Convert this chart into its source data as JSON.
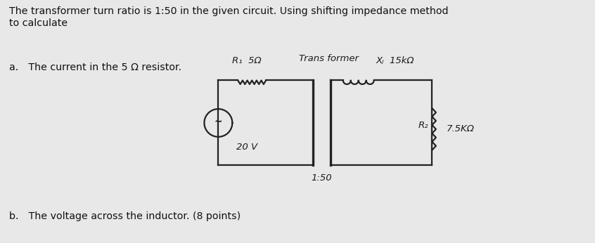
{
  "bg_color": "#e8e8e8",
  "title_text": "The transformer turn ratio is 1:50 in the given circuit. Using shifting impedance method\nto calculate",
  "item_a": "a. The current in the 5 Ω resistor.",
  "item_b": "b. The voltage across the inductor. (8 points)",
  "transformer_label": "Trans former",
  "R1_label": "R₁  5Ω",
  "XL_label": "Xⱼ  15kΩ",
  "R2_label": "R₂",
  "R2_val_label": "7.5KΩ",
  "source_label": "20 V",
  "ratio_label": "1:50",
  "font_color": "#111111",
  "circuit_color": "#222222",
  "label_color": "#1a1a1a"
}
